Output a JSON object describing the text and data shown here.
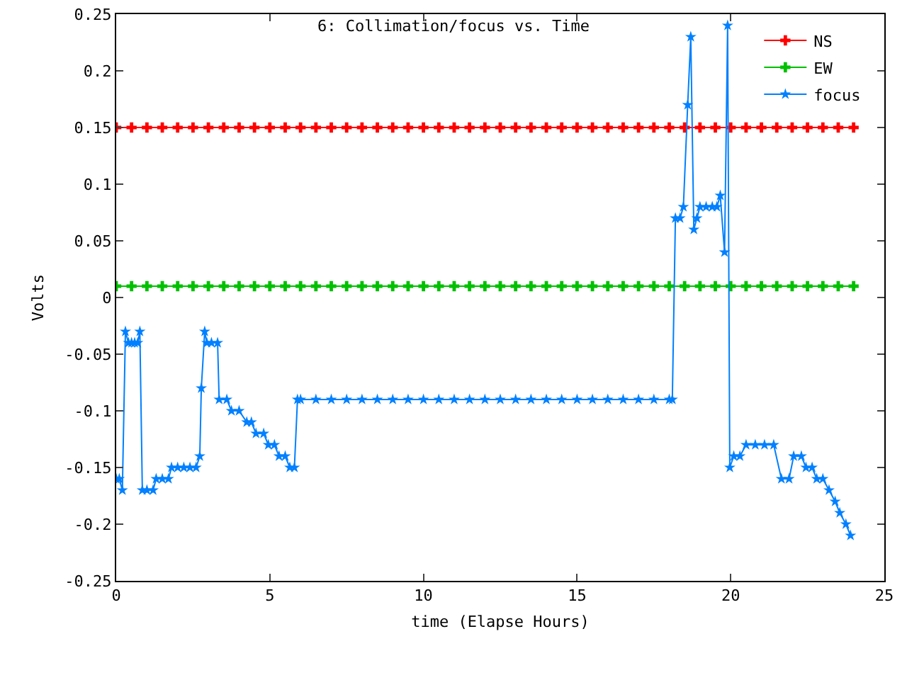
{
  "chart_data": {
    "type": "line",
    "title": "6: Collimation/focus vs. Time",
    "xlabel": "time (Elapse Hours)",
    "ylabel": "Volts",
    "series": [
      {
        "name": "NS",
        "color": "#ff0000",
        "marker": "cross",
        "x": [
          0,
          0.5,
          1,
          1.5,
          2,
          2.5,
          3,
          3.5,
          4,
          4.5,
          5,
          5.5,
          6,
          6.5,
          7,
          7.5,
          8,
          8.5,
          9,
          9.5,
          10,
          10.5,
          11,
          11.5,
          12,
          12.5,
          13,
          13.5,
          14,
          14.5,
          15,
          15.5,
          16,
          16.5,
          17,
          17.5,
          18,
          18.5,
          19,
          19.5,
          20,
          20.5,
          21,
          21.5,
          22,
          22.5,
          23,
          23.5,
          24
        ],
        "values": [
          0.15,
          0.15,
          0.15,
          0.15,
          0.15,
          0.15,
          0.15,
          0.15,
          0.15,
          0.15,
          0.15,
          0.15,
          0.15,
          0.15,
          0.15,
          0.15,
          0.15,
          0.15,
          0.15,
          0.15,
          0.15,
          0.15,
          0.15,
          0.15,
          0.15,
          0.15,
          0.15,
          0.15,
          0.15,
          0.15,
          0.15,
          0.15,
          0.15,
          0.15,
          0.15,
          0.15,
          0.15,
          0.15,
          0.15,
          0.15,
          0.15,
          0.15,
          0.15,
          0.15,
          0.15,
          0.15,
          0.15,
          0.15,
          0.15
        ]
      },
      {
        "name": "EW",
        "color": "#00c000",
        "marker": "cross",
        "x": [
          0,
          0.5,
          1,
          1.5,
          2,
          2.5,
          3,
          3.5,
          4,
          4.5,
          5,
          5.5,
          6,
          6.5,
          7,
          7.5,
          8,
          8.5,
          9,
          9.5,
          10,
          10.5,
          11,
          11.5,
          12,
          12.5,
          13,
          13.5,
          14,
          14.5,
          15,
          15.5,
          16,
          16.5,
          17,
          17.5,
          18,
          18.5,
          19,
          19.5,
          20,
          20.5,
          21,
          21.5,
          22,
          22.5,
          23,
          23.5,
          24
        ],
        "values": [
          0.01,
          0.01,
          0.01,
          0.01,
          0.01,
          0.01,
          0.01,
          0.01,
          0.01,
          0.01,
          0.01,
          0.01,
          0.01,
          0.01,
          0.01,
          0.01,
          0.01,
          0.01,
          0.01,
          0.01,
          0.01,
          0.01,
          0.01,
          0.01,
          0.01,
          0.01,
          0.01,
          0.01,
          0.01,
          0.01,
          0.01,
          0.01,
          0.01,
          0.01,
          0.01,
          0.01,
          0.01,
          0.01,
          0.01,
          0.01,
          0.01,
          0.01,
          0.01,
          0.01,
          0.01,
          0.01,
          0.01,
          0.01,
          0.01
        ]
      },
      {
        "name": "focus",
        "color": "#0080ff",
        "marker": "star",
        "x": [
          0,
          0.1,
          0.2,
          0.3,
          0.4,
          0.5,
          0.6,
          0.7,
          0.77,
          0.85,
          1.0,
          1.2,
          1.3,
          1.5,
          1.7,
          1.8,
          2.0,
          2.2,
          2.4,
          2.6,
          2.72,
          2.77,
          2.88,
          2.95,
          3.1,
          3.3,
          3.35,
          3.6,
          3.75,
          4.0,
          4.25,
          4.4,
          4.55,
          4.8,
          4.95,
          5.15,
          5.3,
          5.5,
          5.65,
          5.8,
          5.9,
          6,
          6.5,
          7,
          7.5,
          8,
          8.5,
          9,
          9.5,
          10,
          10.5,
          11,
          11.5,
          12,
          12.5,
          13,
          13.5,
          14,
          14.5,
          15,
          15.5,
          16,
          16.5,
          17,
          17.5,
          18,
          18.1,
          18.2,
          18.35,
          18.46,
          18.6,
          18.7,
          18.8,
          18.9,
          19.0,
          19.2,
          19.4,
          19.55,
          19.66,
          19.8,
          19.9,
          19.97,
          20.1,
          20.3,
          20.5,
          20.8,
          21.1,
          21.4,
          21.65,
          21.9,
          22.05,
          22.3,
          22.45,
          22.65,
          22.8,
          23.0,
          23.2,
          23.4,
          23.55,
          23.75,
          23.9
        ],
        "values": [
          -0.16,
          -0.16,
          -0.17,
          -0.03,
          -0.04,
          -0.04,
          -0.04,
          -0.04,
          -0.03,
          -0.17,
          -0.17,
          -0.17,
          -0.16,
          -0.16,
          -0.16,
          -0.15,
          -0.15,
          -0.15,
          -0.15,
          -0.15,
          -0.14,
          -0.08,
          -0.03,
          -0.04,
          -0.04,
          -0.04,
          -0.09,
          -0.09,
          -0.1,
          -0.1,
          -0.11,
          -0.11,
          -0.12,
          -0.12,
          -0.13,
          -0.13,
          -0.14,
          -0.14,
          -0.15,
          -0.15,
          -0.09,
          -0.09,
          -0.09,
          -0.09,
          -0.09,
          -0.09,
          -0.09,
          -0.09,
          -0.09,
          -0.09,
          -0.09,
          -0.09,
          -0.09,
          -0.09,
          -0.09,
          -0.09,
          -0.09,
          -0.09,
          -0.09,
          -0.09,
          -0.09,
          -0.09,
          -0.09,
          -0.09,
          -0.09,
          -0.09,
          -0.09,
          0.07,
          0.07,
          0.08,
          0.17,
          0.23,
          0.06,
          0.07,
          0.08,
          0.08,
          0.08,
          0.08,
          0.09,
          0.04,
          0.24,
          -0.15,
          -0.14,
          -0.14,
          -0.13,
          -0.13,
          -0.13,
          -0.13,
          -0.16,
          -0.16,
          -0.14,
          -0.14,
          -0.15,
          -0.15,
          -0.16,
          -0.16,
          -0.17,
          -0.18,
          -0.19,
          -0.2,
          -0.21
        ]
      }
    ],
    "xlim": [
      0,
      25
    ],
    "xticks": [
      0,
      5,
      10,
      15,
      20,
      25
    ],
    "ylim": [
      -0.25,
      0.25
    ],
    "yticks": [
      -0.25,
      -0.2,
      -0.15,
      -0.1,
      -0.05,
      0,
      0.05,
      0.1,
      0.15,
      0.2,
      0.25
    ],
    "grid": false,
    "legend": "top right",
    "line_style": "solid"
  }
}
